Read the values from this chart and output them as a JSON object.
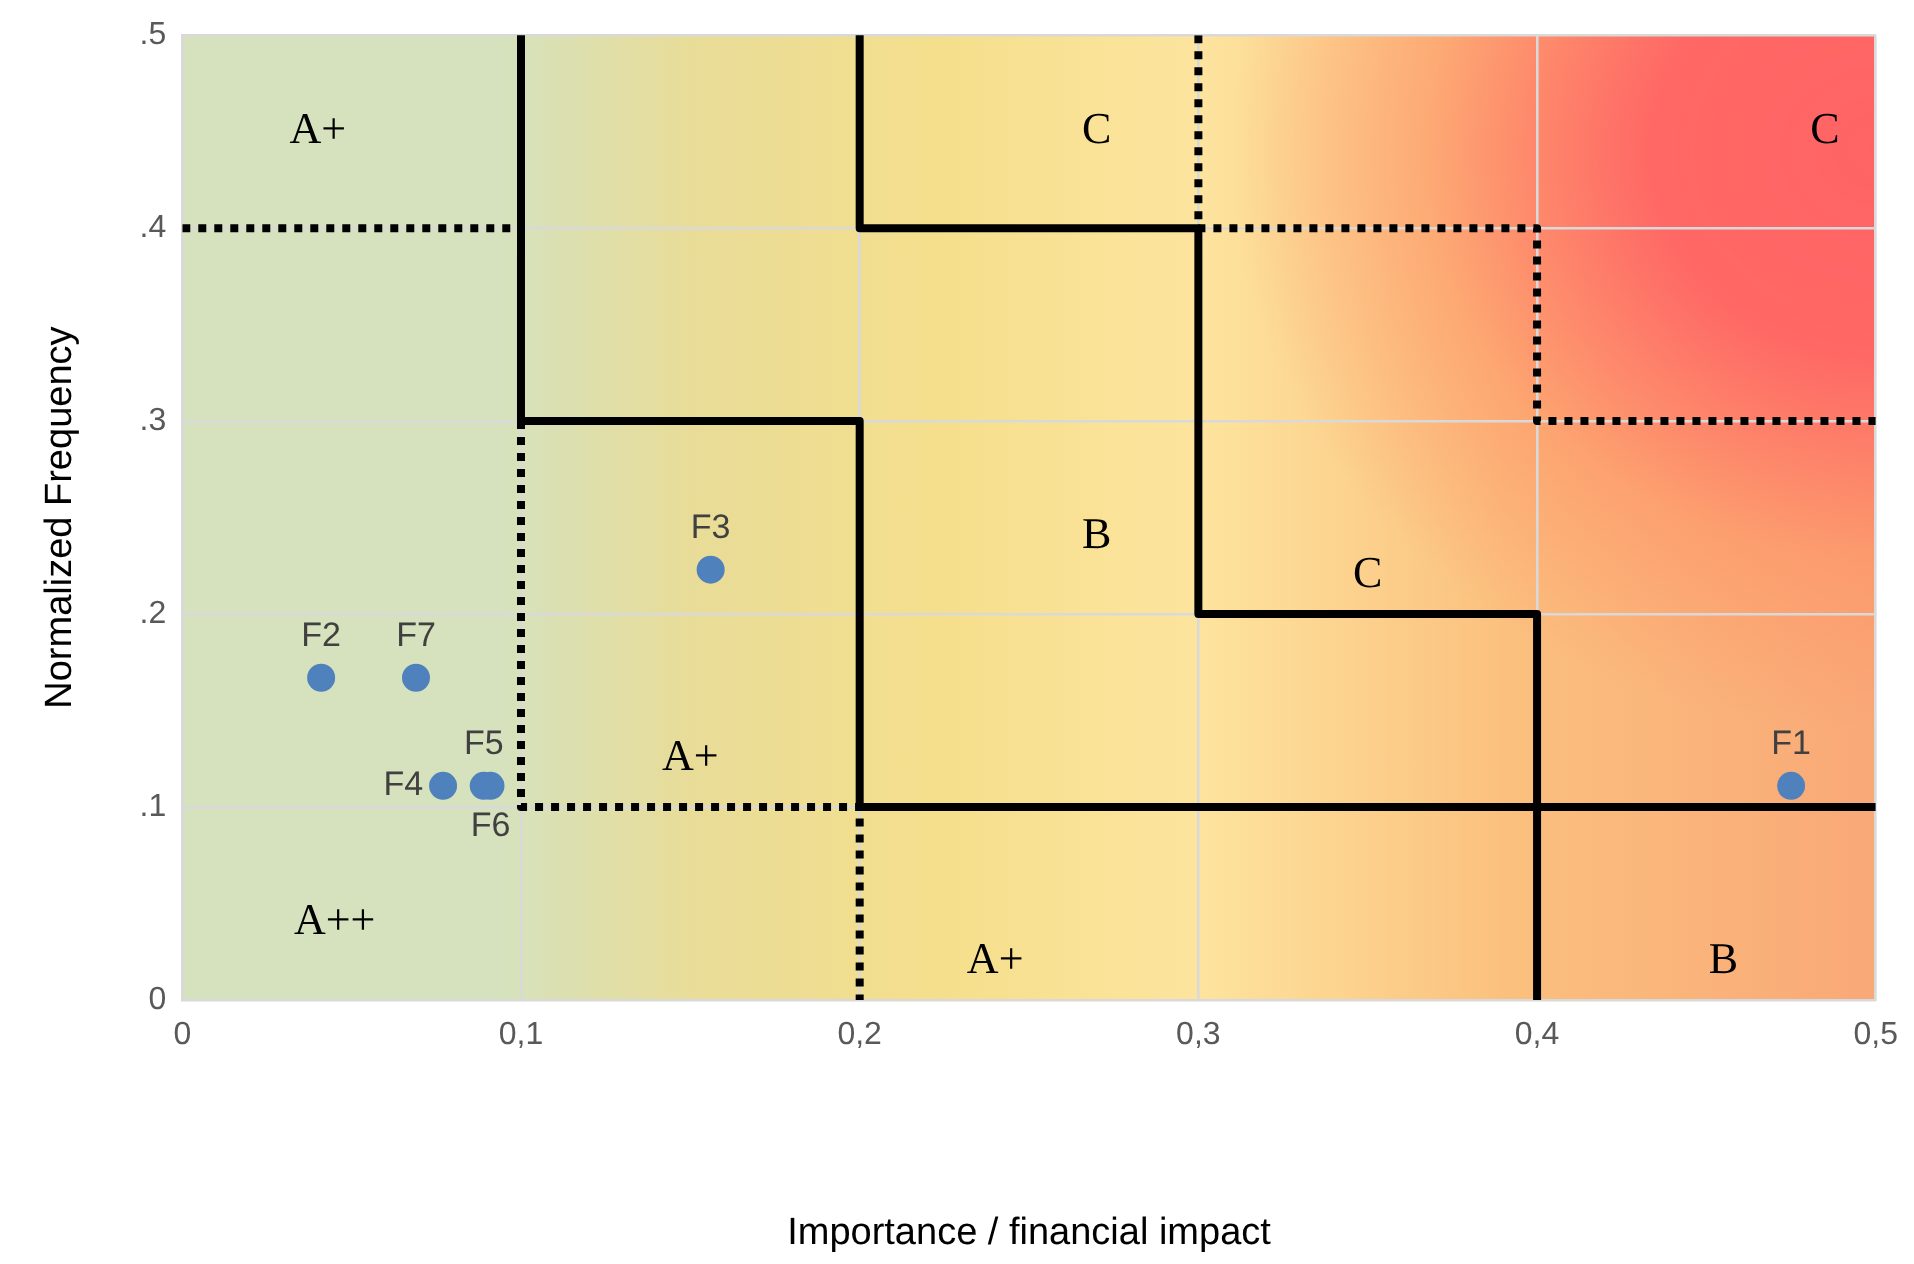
{
  "chart_data": {
    "type": "scatter",
    "xlabel": "Importance / financial impact",
    "ylabel": "Normalized Frequency",
    "xlim": [
      0,
      0.5
    ],
    "xticks": [
      0,
      {
        "value": 0.1,
        "label": "0,1"
      },
      {
        "value": 0.2,
        "label": "0,2"
      },
      {
        "value": 0.3,
        "label": "0,3"
      },
      {
        "value": 0.4,
        "label": "0,4"
      },
      {
        "value": 0.5,
        "label": "0,5"
      }
    ],
    "ylim": [
      0,
      0.5
    ],
    "yticks": [
      0,
      {
        "value": 0.1,
        "label": ".1"
      },
      {
        "value": 0.2,
        "label": ".2"
      },
      {
        "value": 0.3,
        "label": ".3"
      },
      {
        "value": 0.4,
        "label": ".4"
      },
      {
        "value": 0.5,
        "label": ".5"
      }
    ],
    "grid": true,
    "legend": false,
    "marker": "circle",
    "series": [
      {
        "type": "line",
        "color": "#000000",
        "line_style": "solid",
        "marker": "none",
        "x": [
          0.1,
          0.1,
          0.2,
          0.2,
          0.5
        ],
        "values": [
          0.5,
          0.3,
          0.3,
          0.1,
          0.1
        ]
      },
      {
        "type": "line",
        "color": "#000000",
        "line_style": "solid",
        "marker": "none",
        "x": [
          0.2,
          0.2,
          0.3,
          0.3,
          0.4,
          0.4
        ],
        "values": [
          0.5,
          0.4,
          0.4,
          0.2,
          0.2,
          0
        ]
      },
      {
        "type": "line",
        "color": "#000000",
        "line_style": "dotted",
        "marker": "none",
        "x": [
          0,
          0.1
        ],
        "values": [
          0.4,
          0.4
        ]
      },
      {
        "type": "line",
        "color": "#000000",
        "line_style": "dotted",
        "marker": "none",
        "x": [
          0.1,
          0.1,
          0.2,
          0.2
        ],
        "values": [
          0.3,
          0.1,
          0.1,
          0
        ]
      },
      {
        "type": "line",
        "color": "#000000",
        "line_style": "dotted",
        "marker": "none",
        "x": [
          0.3,
          0.3,
          0.4,
          0.4,
          0.5
        ],
        "values": [
          0.5,
          0.4,
          0.4,
          0.3,
          0.3
        ]
      },
      {
        "color": "#4f81bd",
        "x": [
          0.475,
          0.041,
          0.156,
          0.077,
          0.089,
          0.091,
          0.069
        ],
        "values": [
          0.111,
          0.167,
          0.223,
          0.111,
          0.111,
          0.111,
          0.167
        ]
      }
    ],
    "annotations": [
      {
        "text": "F1",
        "x": 0.475,
        "y": 0.111
      },
      {
        "text": "F2",
        "x": 0.041,
        "y": 0.167
      },
      {
        "text": "F3",
        "x": 0.156,
        "y": 0.223
      },
      {
        "text": "F5",
        "x": 0.089,
        "y": 0.111
      },
      {
        "text": "F7",
        "x": 0.069,
        "y": 0.167
      },
      {
        "text": "F4",
        "x": 0.077,
        "y": 0.111
      },
      {
        "text": "F6",
        "x": 0.091,
        "y": 0.111
      },
      "A+",
      "A++",
      "A+",
      "A+",
      "B",
      "C",
      "C",
      "C",
      "B"
    ]
  }
}
